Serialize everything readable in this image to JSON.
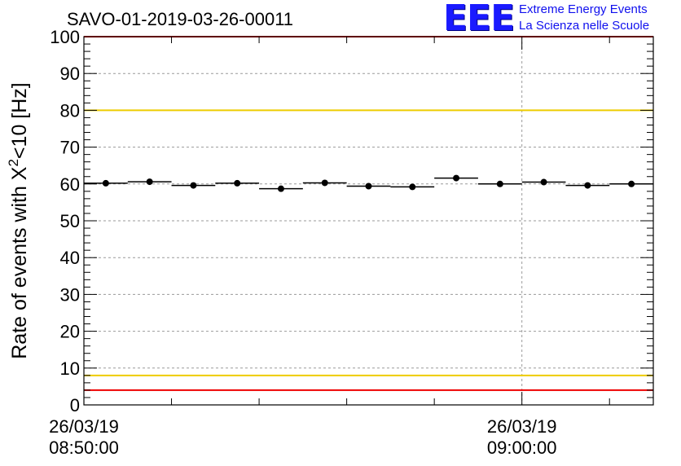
{
  "title": "SAVO-01-2019-03-26-00011",
  "logo": {
    "mark": "EEE",
    "line1": "Extreme Energy Events",
    "line2": "La Scienza nelle Scuole"
  },
  "chart_data": {
    "type": "scatter",
    "title": "SAVO-01-2019-03-26-00011",
    "ylabel_base": "Rate of events with X",
    "ylabel_sup": "2",
    "ylabel_tail": "<10 [Hz]",
    "ylim": [
      0,
      100
    ],
    "yticks": [
      0,
      10,
      20,
      30,
      40,
      50,
      60,
      70,
      80,
      90,
      100
    ],
    "xlim_minutes": [
      0,
      13
    ],
    "xtick_labels": [
      {
        "minute": 0,
        "date": "26/03/19",
        "time": "08:50:00"
      },
      {
        "minute": 10,
        "date": "26/03/19",
        "time": "09:00:00"
      }
    ],
    "grid": true,
    "points": [
      {
        "x": 0.5,
        "y": 60.2
      },
      {
        "x": 1.5,
        "y": 60.6
      },
      {
        "x": 2.5,
        "y": 59.6
      },
      {
        "x": 3.5,
        "y": 60.2
      },
      {
        "x": 4.5,
        "y": 58.7
      },
      {
        "x": 5.5,
        "y": 60.3
      },
      {
        "x": 6.5,
        "y": 59.4
      },
      {
        "x": 7.5,
        "y": 59.2
      },
      {
        "x": 8.5,
        "y": 61.6
      },
      {
        "x": 9.5,
        "y": 60.0
      },
      {
        "x": 10.5,
        "y": 60.5
      },
      {
        "x": 11.5,
        "y": 59.6
      },
      {
        "x": 12.5,
        "y": 60.0
      }
    ],
    "bin_width": 1,
    "reference_lines": [
      {
        "y": 100,
        "color": "#ee0000"
      },
      {
        "y": 80,
        "color": "#eecc00"
      },
      {
        "y": 8,
        "color": "#eecc00"
      },
      {
        "y": 4,
        "color": "#ee0000"
      }
    ]
  }
}
